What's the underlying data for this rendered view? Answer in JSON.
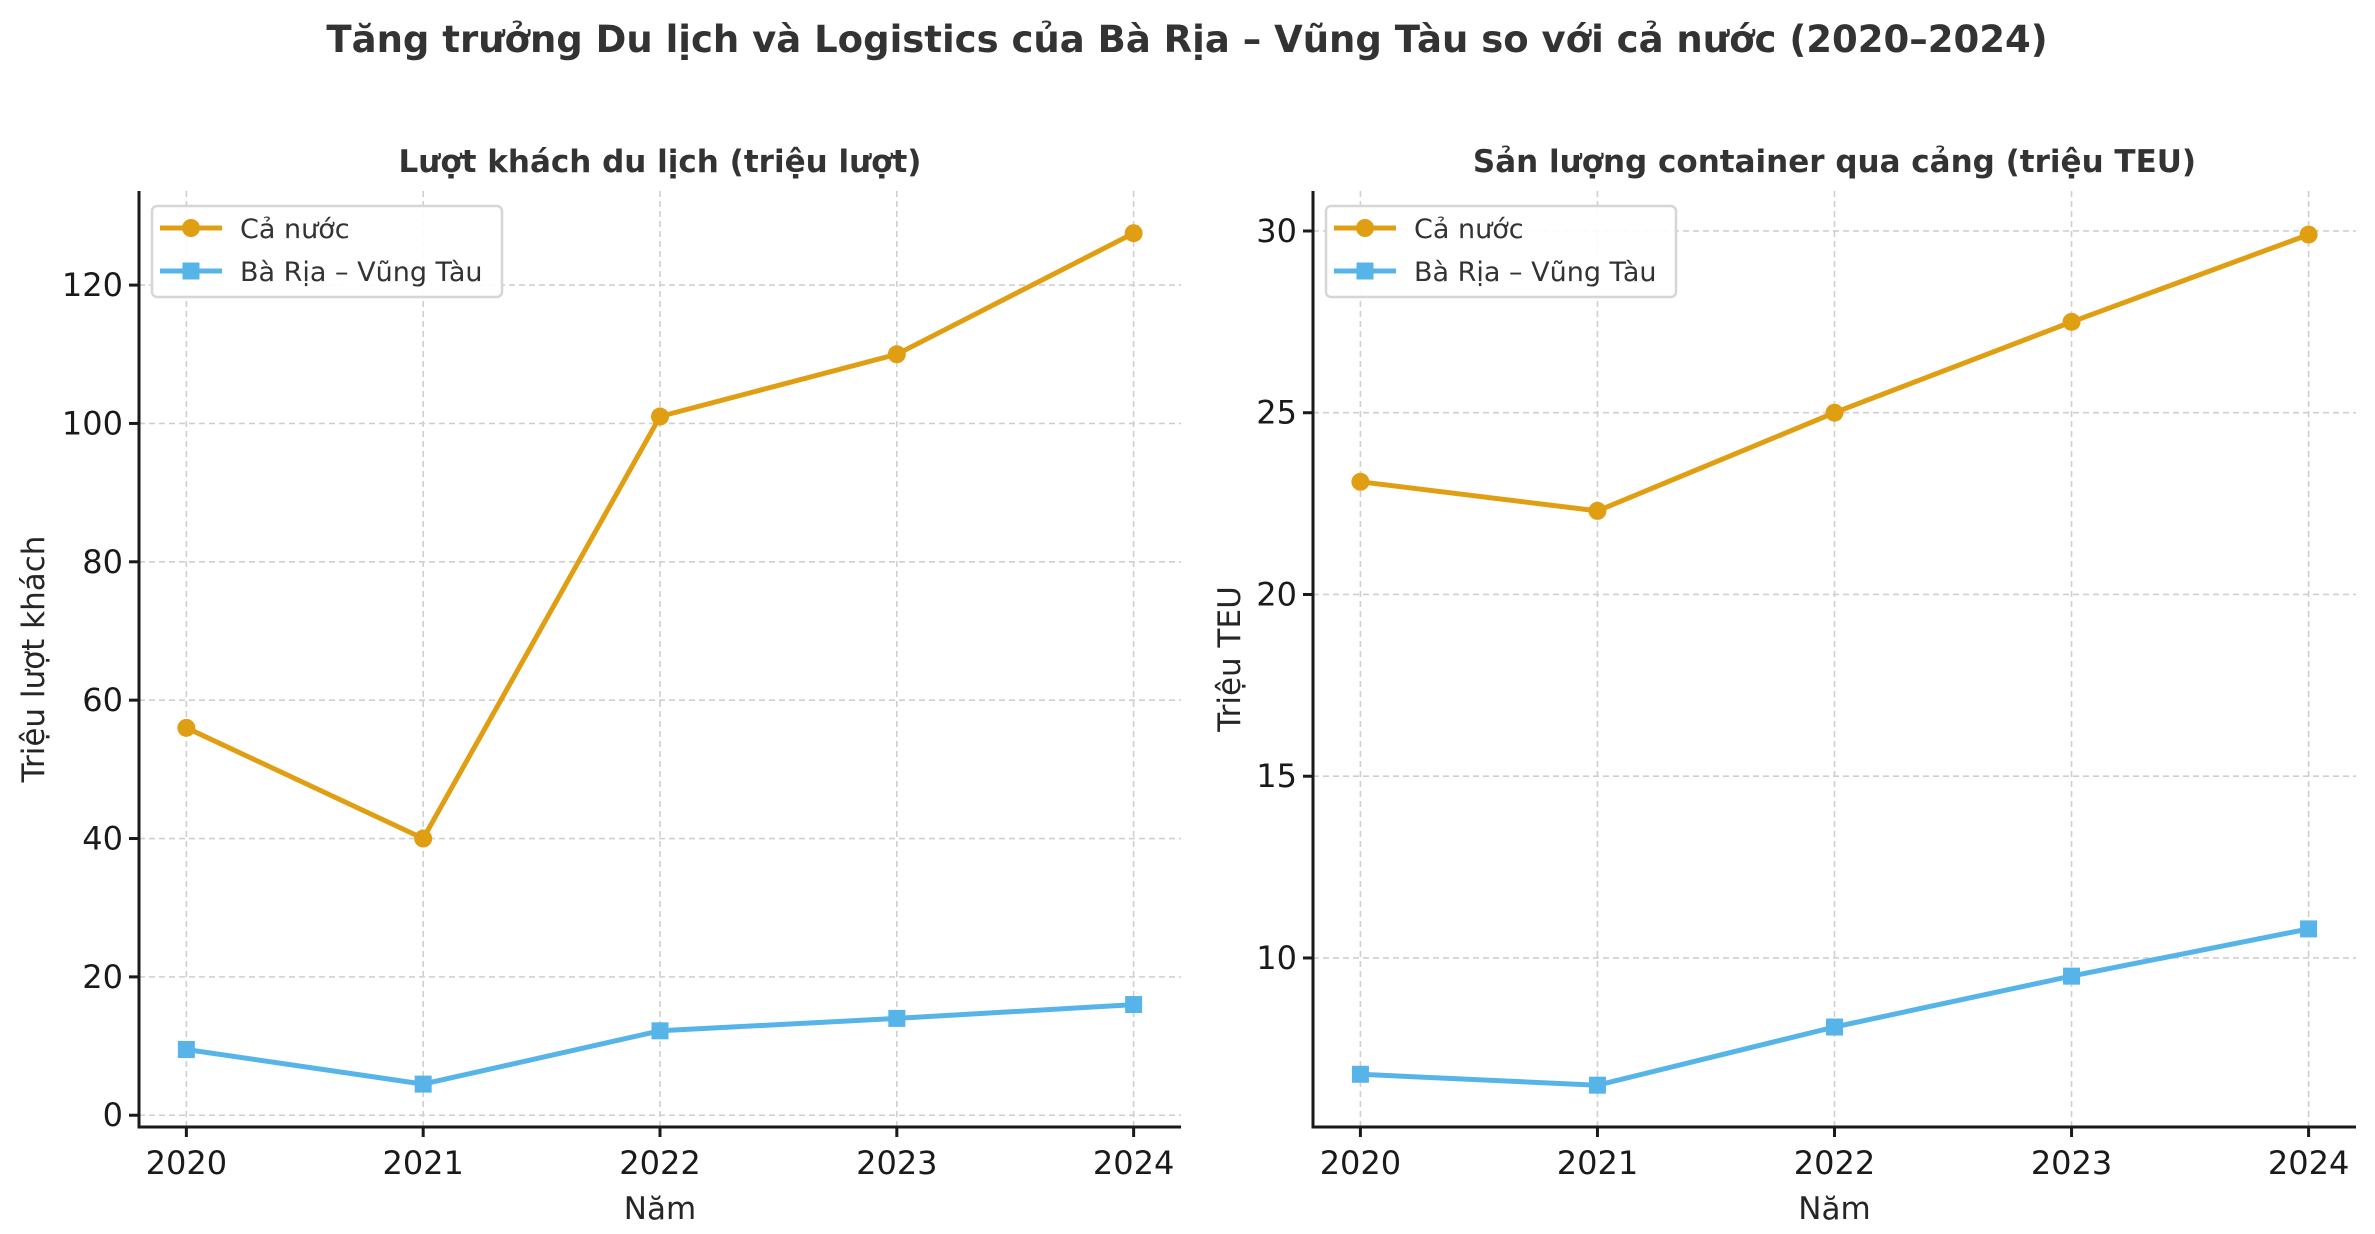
{
  "suptitle": "Tăng trưởng Du lịch và Logistics của Bà Rịa – Vũng Tàu so với cả nước (2020–2024)",
  "chart_data": [
    {
      "type": "line",
      "title": "Lượt khách du lịch (triệu lượt)",
      "xlabel": "Năm",
      "ylabel": "Triệu lượt khách",
      "x": [
        2020,
        2021,
        2022,
        2023,
        2024
      ],
      "xticks": [
        "2020",
        "2021",
        "2022",
        "2023",
        "2024"
      ],
      "yticks": [
        0,
        20,
        40,
        60,
        80,
        100,
        120
      ],
      "ylim": [
        -1.7,
        133.6
      ],
      "xlim": [
        2019.8,
        2024.2
      ],
      "grid": true,
      "legend_position": "top-left",
      "series": [
        {
          "name": "Cả nước",
          "color": "#E09F12",
          "marker": "circle",
          "values": [
            56,
            40,
            101,
            110,
            127.5
          ]
        },
        {
          "name": "Bà Rịa – Vũng Tàu",
          "color": "#56B4E9",
          "marker": "square",
          "values": [
            9.5,
            4.5,
            12.2,
            14.0,
            16.0
          ]
        }
      ]
    },
    {
      "type": "line",
      "title": "Sản lượng container qua cảng (triệu TEU)",
      "xlabel": "Năm",
      "ylabel": "Triệu TEU",
      "x": [
        2020,
        2021,
        2022,
        2023,
        2024
      ],
      "xticks": [
        "2020",
        "2021",
        "2022",
        "2023",
        "2024"
      ],
      "yticks": [
        10,
        15,
        20,
        25,
        30
      ],
      "ylim": [
        5.35,
        31.1
      ],
      "xlim": [
        2019.8,
        2024.2
      ],
      "grid": true,
      "legend_position": "top-left",
      "series": [
        {
          "name": "Cả nước",
          "color": "#E09F12",
          "marker": "circle",
          "values": [
            23.1,
            22.3,
            25.0,
            27.5,
            29.9
          ]
        },
        {
          "name": "Bà Rịa – Vũng Tàu",
          "color": "#56B4E9",
          "marker": "square",
          "values": [
            6.8,
            6.5,
            8.1,
            9.5,
            10.8
          ]
        }
      ]
    }
  ]
}
